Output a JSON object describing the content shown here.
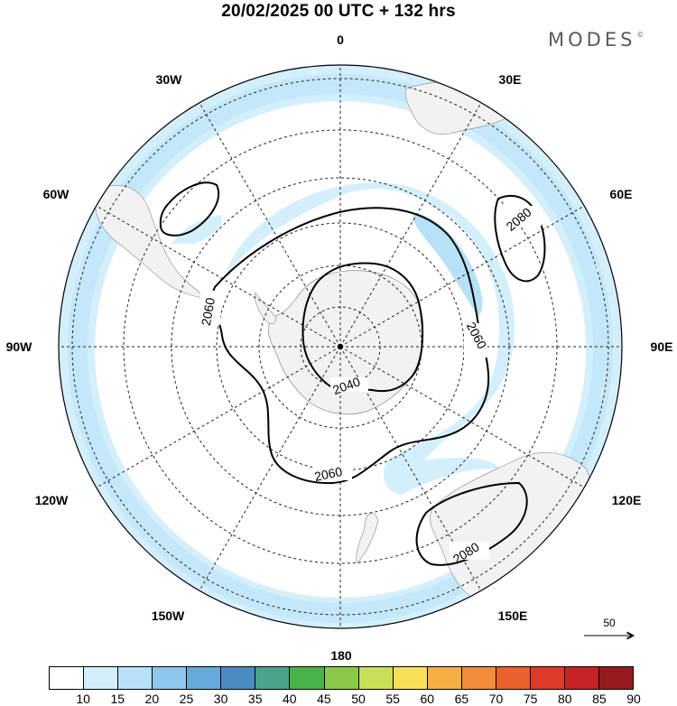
{
  "header": {
    "title": "20/02/2025  00 UTC  + 132 hrs",
    "logo": "MODES",
    "logo_mark": "©"
  },
  "map": {
    "projection": "south polar stereographic",
    "longitude_labels": [
      "0",
      "30E",
      "60E",
      "90E",
      "120E",
      "150E",
      "180",
      "150W",
      "120W",
      "90W",
      "60W",
      "30W"
    ],
    "contour_labels": [
      "2040",
      "2060",
      "2060",
      "2060",
      "2080",
      "2080"
    ],
    "contour_color": "#000000",
    "land_color": "#f2f2f2",
    "graticule": "dashed"
  },
  "reference_vector": {
    "label": "50"
  },
  "colorbar": {
    "levels": [
      "10",
      "15",
      "20",
      "25",
      "30",
      "35",
      "40",
      "45",
      "50",
      "55",
      "60",
      "65",
      "70",
      "75",
      "80",
      "85",
      "90"
    ],
    "colors": [
      "#ffffff",
      "#d4effc",
      "#b6e1f7",
      "#8ec6ec",
      "#68a9dc",
      "#4a8cc4",
      "#4aa38a",
      "#49b249",
      "#8cc84b",
      "#c7de58",
      "#f7e057",
      "#f4af45",
      "#f08c3a",
      "#e9612e",
      "#de3a2a",
      "#c52326",
      "#961b1e"
    ]
  }
}
